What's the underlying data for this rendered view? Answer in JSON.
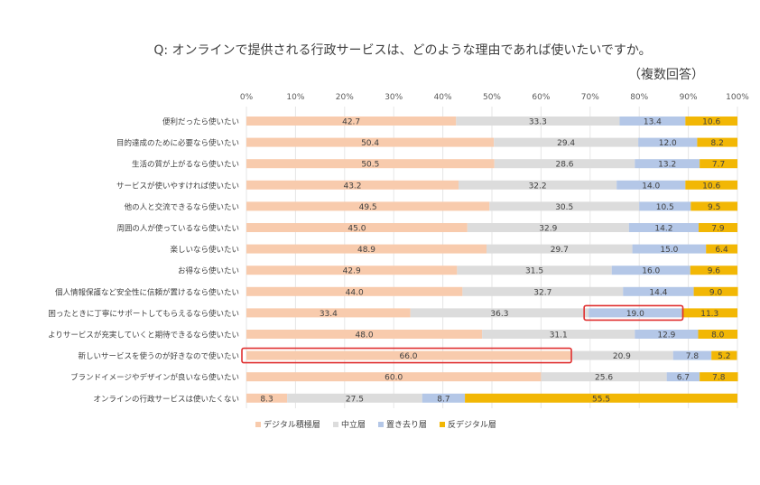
{
  "chart_data": {
    "type": "bar",
    "orientation": "horizontal",
    "stacked": true,
    "percent_stacked": true,
    "title": "Q: オンラインで提供される行政サービスは、どのような理由であれば使いたいですか。",
    "subtitle": "（複数回答）",
    "xlim": [
      0,
      100
    ],
    "x_ticks": [
      "0%",
      "10%",
      "20%",
      "30%",
      "40%",
      "50%",
      "60%",
      "70%",
      "80%",
      "90%",
      "100%"
    ],
    "grid": true,
    "legend_position": "bottom-left",
    "categories": [
      "便利だったら使いたい",
      "目的達成のために必要なら使いたい",
      "生活の質が上がるなら使いたい",
      "サービスが使いやすければ使いたい",
      "他の人と交流できるなら使いたい",
      "周囲の人が使っているなら使いたい",
      "楽しいなら使いたい",
      "お得なら使いたい",
      "個人情報保護など安全性に信頼が置けるなら使いたい",
      "困ったときに丁寧にサポートしてもらえるなら使いたい",
      "よりサービスが充実していくと期待できるなら使いたい",
      "新しいサービスを使うのが好きなので使いたい",
      "ブランドイメージやデザインが良いなら使いたい",
      "オンラインの行政サービスは使いたくない"
    ],
    "series": [
      {
        "name": "デジタル積極層",
        "color": "#F8CBAD",
        "values": [
          42.7,
          50.4,
          50.5,
          43.2,
          49.5,
          45.0,
          48.9,
          42.9,
          44.0,
          33.4,
          48.0,
          66.0,
          60.0,
          8.3
        ]
      },
      {
        "name": "中立層",
        "color": "#DCDCDC",
        "values": [
          33.3,
          29.4,
          28.6,
          32.2,
          30.5,
          32.9,
          29.7,
          31.5,
          32.7,
          36.3,
          31.1,
          20.9,
          25.6,
          27.5
        ]
      },
      {
        "name": "置き去り層",
        "color": "#B4C7E7",
        "values": [
          13.4,
          12.0,
          13.2,
          14.0,
          10.5,
          14.2,
          15.0,
          16.0,
          14.4,
          19.0,
          12.9,
          7.8,
          6.7,
          8.7
        ]
      },
      {
        "name": "反デジタル層",
        "color": "#F2B705",
        "values": [
          10.6,
          8.2,
          7.7,
          10.6,
          9.5,
          7.9,
          6.4,
          9.6,
          9.0,
          11.3,
          8.0,
          5.2,
          7.8,
          55.5
        ]
      }
    ],
    "labels": [
      [
        "42.7",
        "33.3",
        "13.4",
        "10.6"
      ],
      [
        "50.4",
        "29.4",
        "12.0",
        "8.2"
      ],
      [
        "50.5",
        "28.6",
        "13.2",
        "7.7"
      ],
      [
        "43.2",
        "32.2",
        "14.0",
        "10.6"
      ],
      [
        "49.5",
        "30.5",
        "10.5",
        "9.5"
      ],
      [
        "45.0",
        "32.9",
        "14.2",
        "7.9"
      ],
      [
        "48.9",
        "29.7",
        "15.0",
        "6.4"
      ],
      [
        "42.9",
        "31.5",
        "16.0",
        "9.6"
      ],
      [
        "44.0",
        "32.7",
        "14.4",
        "9.0"
      ],
      [
        "33.4",
        "36.3",
        "19.0",
        "11.3"
      ],
      [
        "48.0",
        "31.1",
        "12.9",
        "8.0"
      ],
      [
        "66.0",
        "20.9",
        "7.8",
        "5.2"
      ],
      [
        "60.0",
        "25.6",
        "6.7",
        "7.8"
      ],
      [
        "8.3",
        "27.5",
        "8.7",
        "55.5"
      ]
    ],
    "highlights": [
      {
        "category_index": 9,
        "series_index": 2,
        "color": "#E03030"
      },
      {
        "category_index": 11,
        "series_index": 0,
        "color": "#E03030"
      }
    ]
  }
}
